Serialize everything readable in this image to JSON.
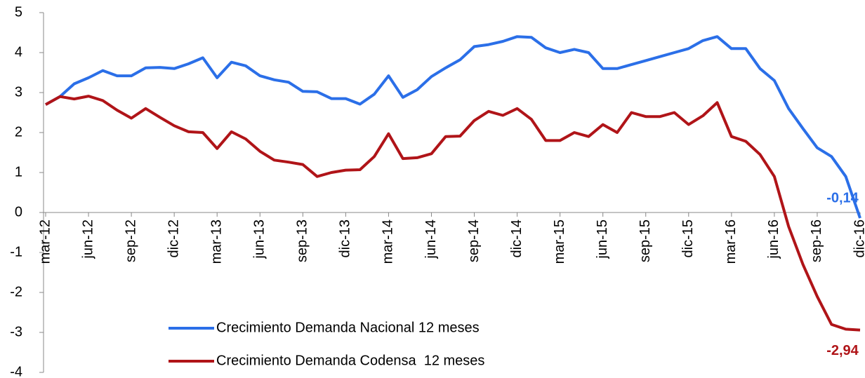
{
  "chart_data": {
    "type": "line",
    "categories": [
      "mar-12",
      null,
      null,
      "jun-12",
      null,
      null,
      "sep-12",
      null,
      null,
      "dic-12",
      null,
      null,
      "mar-13",
      null,
      null,
      "jun-13",
      null,
      null,
      "sep-13",
      null,
      null,
      "dic-13",
      null,
      null,
      "mar-14",
      null,
      null,
      "jun-14",
      null,
      null,
      "sep-14",
      null,
      null,
      "dic-14",
      null,
      null,
      "mar-15",
      null,
      null,
      "jun-15",
      null,
      null,
      "sep-15",
      null,
      null,
      "dic-15",
      null,
      null,
      "mar-16",
      null,
      null,
      "jun-16",
      null,
      null,
      "sep-16",
      null,
      null,
      "dic-16"
    ],
    "series": [
      {
        "name": "Crecimiento Demanda Nacional 12 meses",
        "color": "#2b6fe8",
        "values": [
          2.7,
          2.9,
          3.22,
          3.37,
          3.55,
          3.42,
          3.42,
          3.62,
          3.63,
          3.6,
          3.72,
          3.87,
          3.37,
          3.76,
          3.67,
          3.42,
          3.32,
          3.26,
          3.03,
          3.02,
          2.85,
          2.85,
          2.71,
          2.96,
          3.42,
          2.88,
          3.07,
          3.4,
          3.62,
          3.82,
          4.15,
          4.2,
          4.28,
          4.4,
          4.38,
          4.12,
          4.0,
          4.08,
          4.0,
          3.6,
          3.6,
          3.7,
          3.8,
          3.9,
          4.0,
          4.1,
          4.3,
          4.4,
          4.1,
          4.1,
          3.6,
          3.3,
          2.6,
          2.1,
          1.62,
          1.4,
          0.9,
          -0.14
        ],
        "value_labels": [
          null,
          null,
          null,
          null,
          null,
          null,
          null,
          null,
          null,
          null,
          null,
          null,
          null,
          null,
          null,
          null,
          null,
          null,
          null,
          null,
          null,
          null,
          null,
          null,
          null,
          null,
          null,
          null,
          null,
          null,
          null,
          null,
          null,
          null,
          null,
          null,
          null,
          null,
          null,
          null,
          null,
          null,
          null,
          null,
          null,
          null,
          null,
          null,
          null,
          null,
          null,
          null,
          null,
          null,
          null,
          null,
          null,
          "-0,14"
        ]
      },
      {
        "name": "Crecimiento Demanda Codensa  12 meses",
        "color": "#b01418",
        "values": [
          2.7,
          2.9,
          2.84,
          2.91,
          2.8,
          2.56,
          2.36,
          2.6,
          2.38,
          2.17,
          2.02,
          2.0,
          1.6,
          2.02,
          1.84,
          1.53,
          1.31,
          1.26,
          1.2,
          0.9,
          1.0,
          1.06,
          1.07,
          1.4,
          1.97,
          1.35,
          1.37,
          1.47,
          1.9,
          1.91,
          2.3,
          2.53,
          2.43,
          2.6,
          2.33,
          1.8,
          1.8,
          2.0,
          1.9,
          2.2,
          2.0,
          2.5,
          2.4,
          2.4,
          2.5,
          2.2,
          2.42,
          2.75,
          1.9,
          1.78,
          1.45,
          0.9,
          -0.35,
          -1.3,
          -2.1,
          -2.8,
          -2.92,
          -2.94
        ],
        "value_labels": [
          null,
          null,
          null,
          null,
          null,
          null,
          null,
          null,
          null,
          null,
          null,
          null,
          null,
          null,
          null,
          null,
          null,
          null,
          null,
          null,
          null,
          null,
          null,
          null,
          null,
          null,
          null,
          null,
          null,
          null,
          null,
          null,
          null,
          null,
          null,
          null,
          null,
          null,
          null,
          null,
          null,
          null,
          null,
          null,
          null,
          null,
          null,
          null,
          null,
          null,
          null,
          null,
          null,
          null,
          null,
          null,
          null,
          "-2,94"
        ]
      }
    ],
    "ylim": [
      -4,
      5
    ],
    "yticks": [
      -4,
      -3,
      -2,
      -1,
      0,
      1,
      2,
      3,
      4,
      5
    ],
    "grid": false,
    "legend": "lower-left"
  }
}
